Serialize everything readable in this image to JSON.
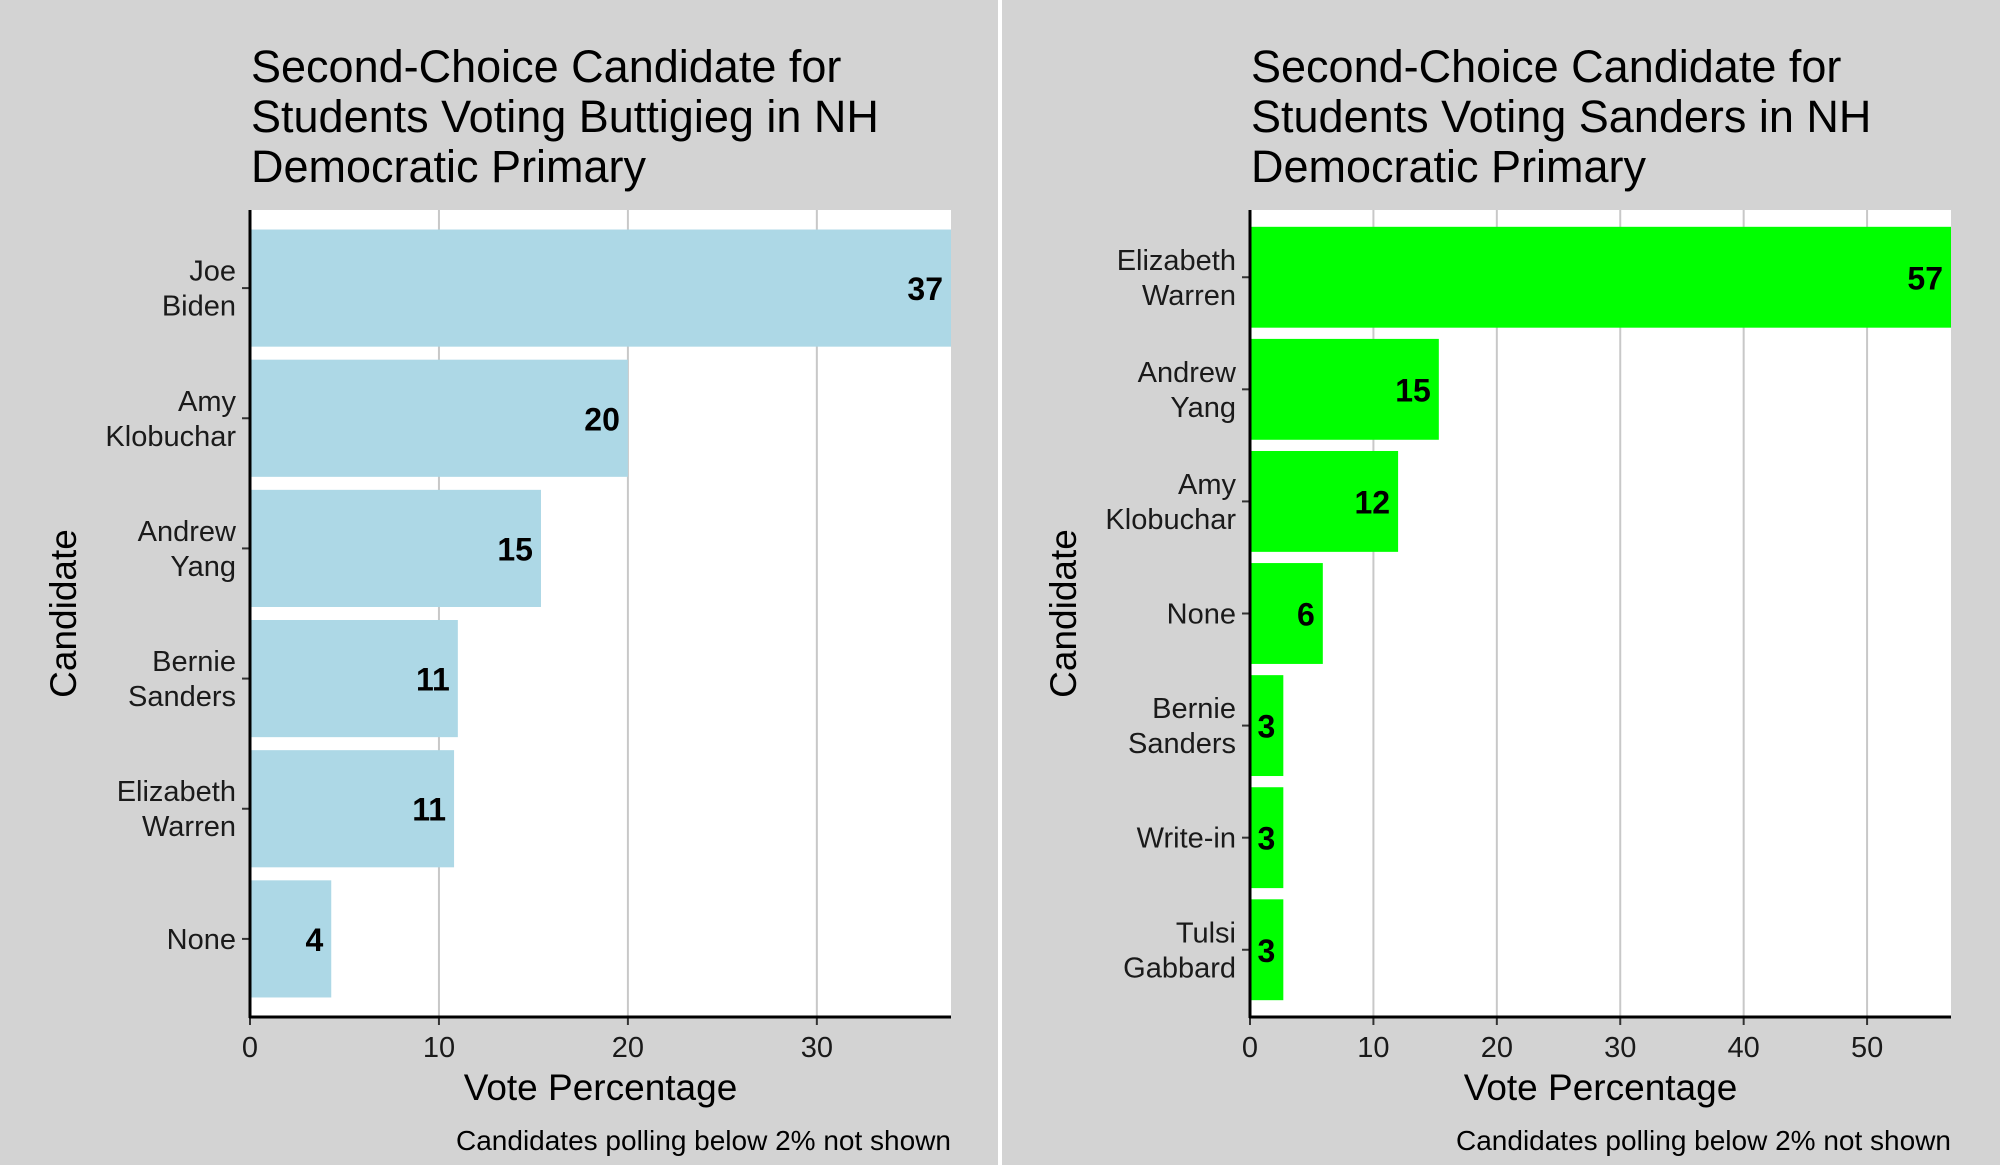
{
  "chart_data": [
    {
      "type": "bar",
      "orientation": "horizontal",
      "title": [
        "Second-Choice Candidate for",
        "Students Voting Buttigieg in NH",
        "Democratic Primary"
      ],
      "xlabel": "Vote Percentage",
      "ylabel": "Candidate",
      "caption": "Candidates polling below 2% not shown",
      "categories": [
        [
          "Joe",
          "Biden"
        ],
        [
          "Amy",
          "Klobuchar"
        ],
        [
          "Andrew",
          "Yang"
        ],
        [
          "Bernie",
          "Sanders"
        ],
        [
          "Elizabeth",
          "Warren"
        ],
        [
          "None"
        ]
      ],
      "values": [
        37.1,
        20.0,
        15.4,
        11.0,
        10.8,
        4.3
      ],
      "labels": [
        "37",
        "20",
        "15",
        "11",
        "11",
        "4"
      ],
      "xticks": [
        0,
        10,
        20,
        30
      ],
      "xlim": [
        0,
        37.1
      ],
      "grid": "vertical-major",
      "color": "#add8e6"
    },
    {
      "type": "bar",
      "orientation": "horizontal",
      "title": [
        "Second-Choice Candidate for",
        "Students Voting Sanders in NH",
        "Democratic Primary"
      ],
      "xlabel": "Vote Percentage",
      "ylabel": "Candidate",
      "caption": "Candidates polling below 2% not shown",
      "categories": [
        [
          "Elizabeth",
          "Warren"
        ],
        [
          "Andrew",
          "Yang"
        ],
        [
          "Amy",
          "Klobuchar"
        ],
        [
          "None"
        ],
        [
          "Bernie",
          "Sanders"
        ],
        [
          "Write-in"
        ],
        [
          "Tulsi",
          "Gabbard"
        ]
      ],
      "values": [
        56.8,
        15.3,
        12.0,
        5.9,
        2.7,
        2.7,
        2.7
      ],
      "labels": [
        "57",
        "15",
        "12",
        "6",
        "3",
        "3",
        "3"
      ],
      "xticks": [
        0,
        10,
        20,
        30,
        40,
        50
      ],
      "xlim": [
        0,
        56.8
      ],
      "grid": "vertical-major",
      "color": "#00ff00"
    }
  ]
}
